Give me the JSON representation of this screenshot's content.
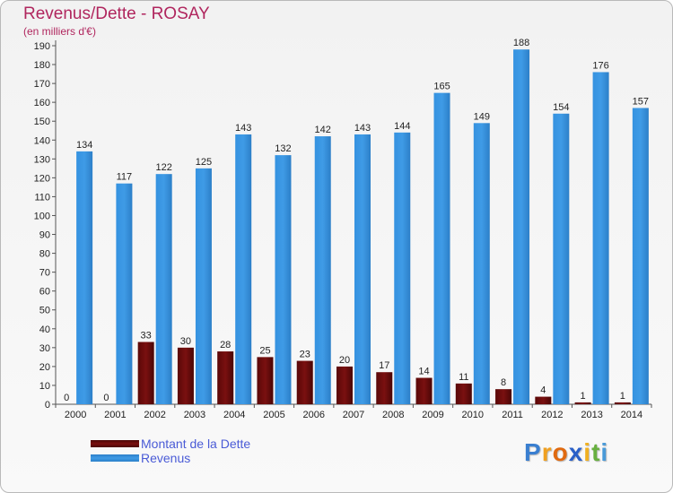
{
  "chart_data": {
    "type": "bar",
    "title": "Revenus/Dette - ROSAY",
    "subtitle": "(en milliers d'€)",
    "categories": [
      "2000",
      "2001",
      "2002",
      "2003",
      "2004",
      "2005",
      "2006",
      "2007",
      "2008",
      "2009",
      "2010",
      "2011",
      "2012",
      "2013",
      "2014"
    ],
    "series": [
      {
        "name": "Montant de la Dette",
        "color": "#7a1010",
        "values": [
          0,
          0,
          33,
          30,
          28,
          25,
          23,
          20,
          17,
          14,
          11,
          8,
          4,
          1,
          1
        ]
      },
      {
        "name": "Revenus",
        "color": "#3f9be6",
        "values": [
          134,
          117,
          122,
          125,
          143,
          132,
          142,
          143,
          144,
          165,
          149,
          188,
          154,
          176,
          157
        ]
      }
    ],
    "ylim": [
      0,
      190
    ],
    "yticks": [
      0,
      10,
      20,
      30,
      40,
      50,
      60,
      70,
      80,
      90,
      100,
      110,
      120,
      130,
      140,
      150,
      160,
      170,
      180,
      190
    ],
    "xlabel": "",
    "ylabel": "",
    "grid": false,
    "legend_position": "bottom-left"
  },
  "logo": {
    "letters": [
      "P",
      "r",
      "o",
      "x",
      "i",
      "t",
      "i"
    ],
    "colors": [
      "#3a7fd0",
      "#f0a020",
      "#e06a10",
      "#2a60c8",
      "#f0b020",
      "#68b040",
      "#4a9ad8"
    ]
  }
}
